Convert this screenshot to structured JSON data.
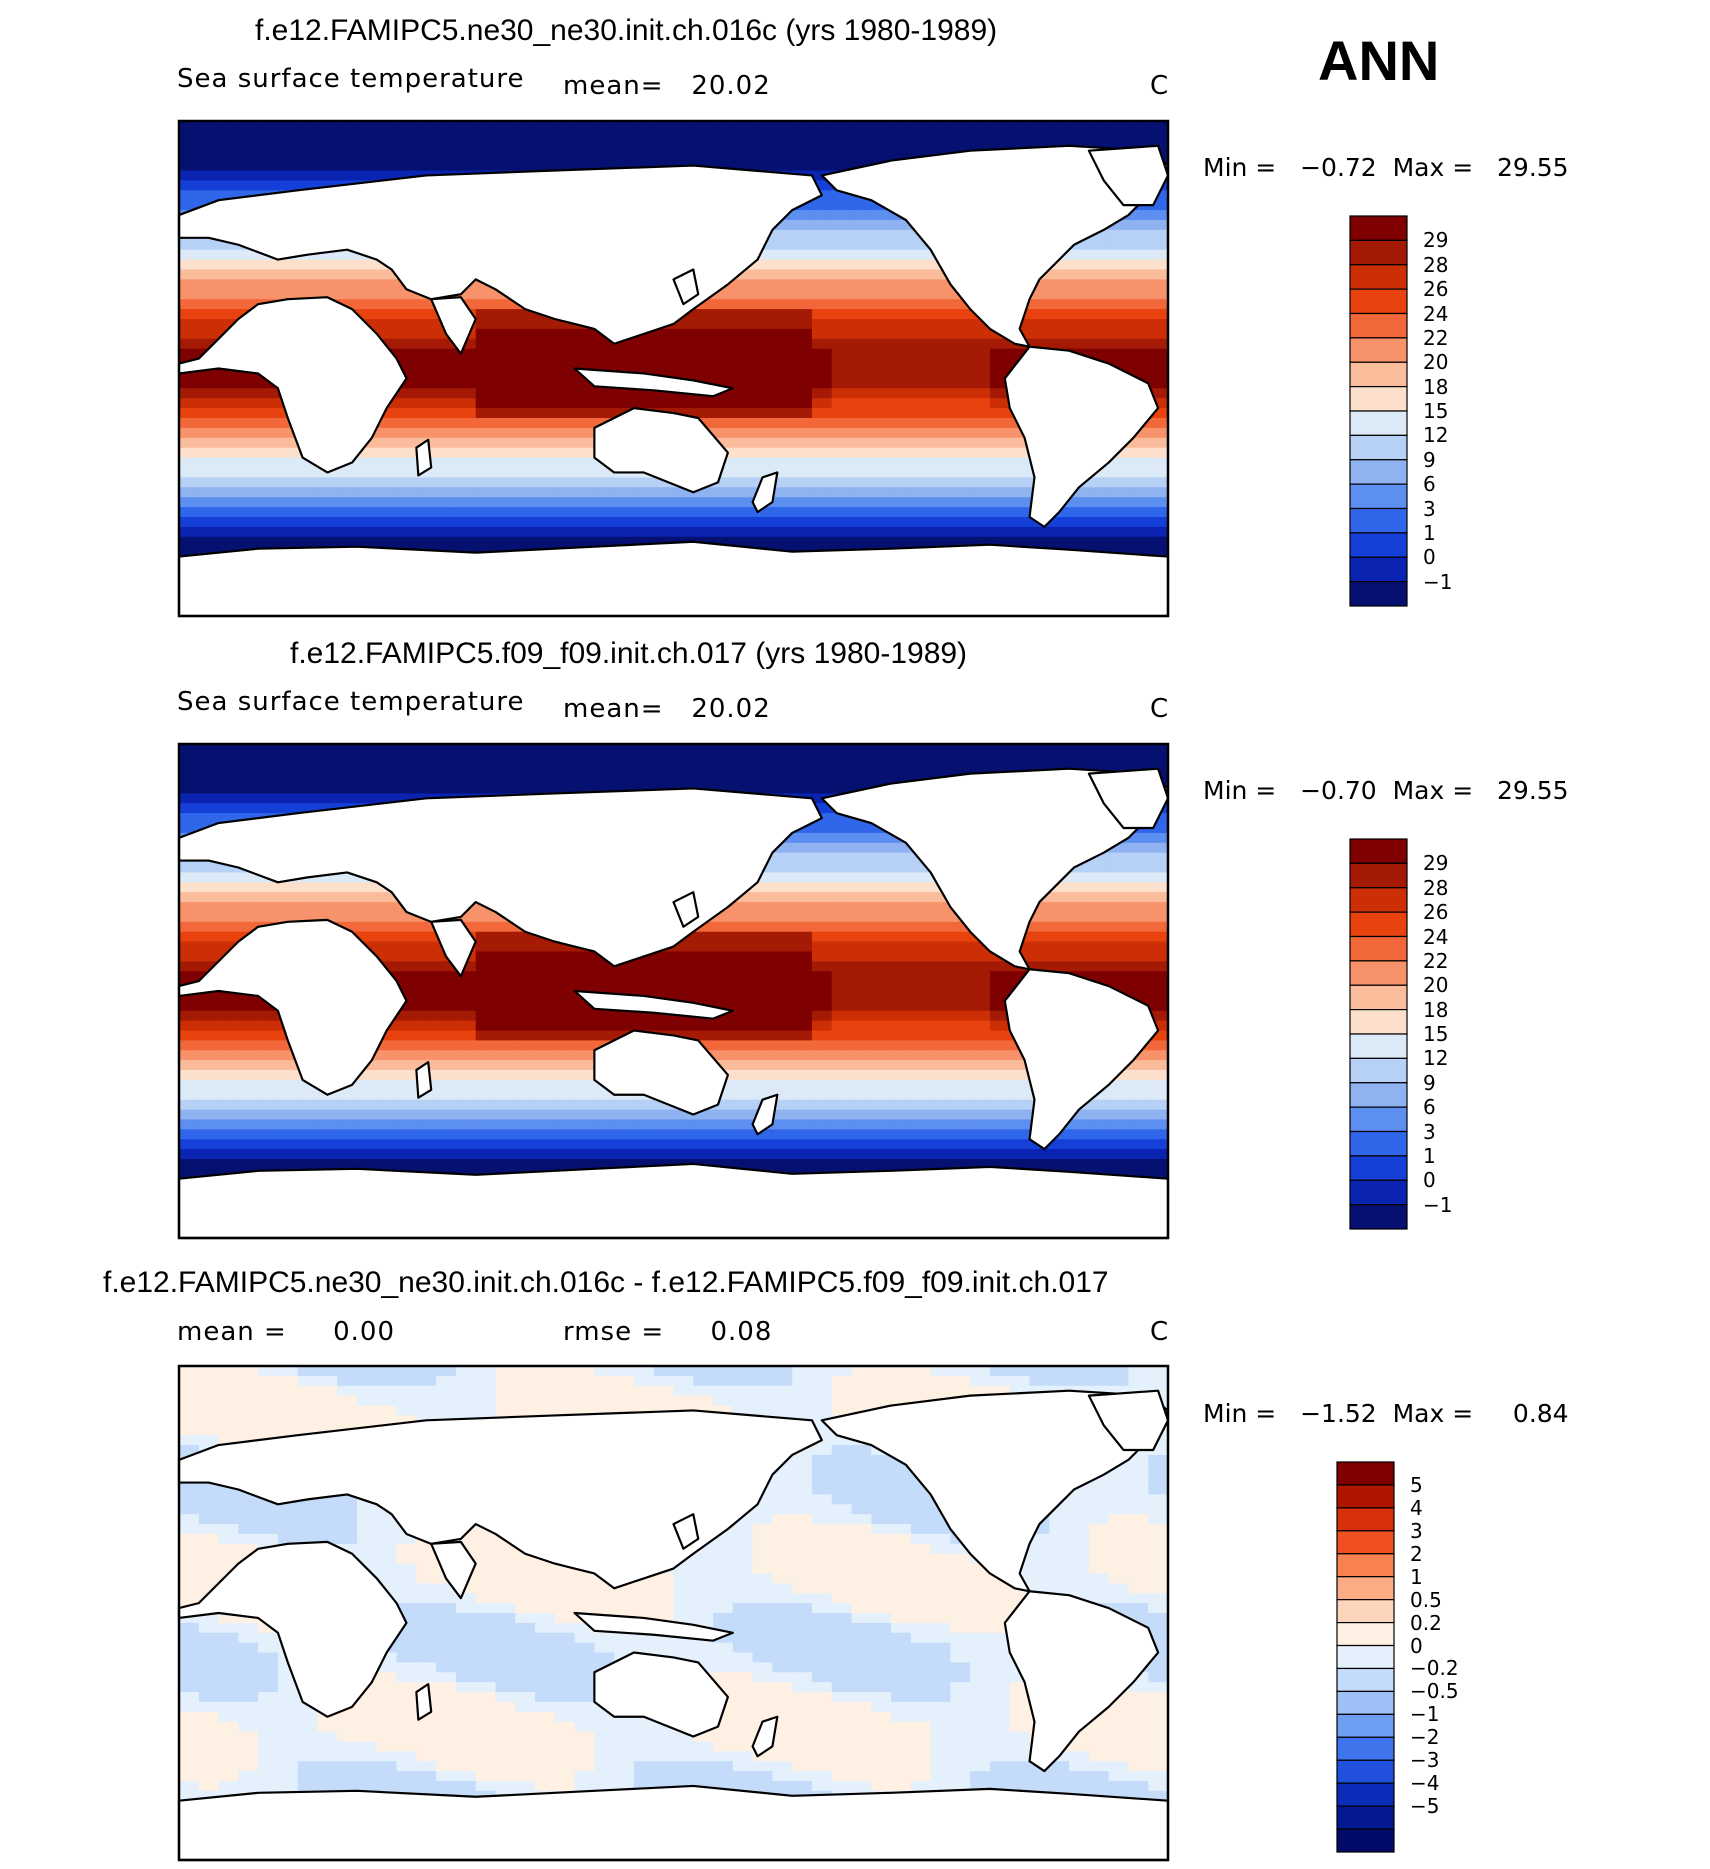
{
  "season": "ANN",
  "panels": [
    {
      "title": "f.e12.FAMIPC5.ne30_ne30.init.ch.016c (yrs 1980-1989)",
      "left_label": "Sea surface temperature",
      "mean_text": "mean=   20.02",
      "units": "C",
      "minmax": "Min =   −0.72  Max =   29.55",
      "colorbar_labels": [
        "29",
        "28",
        "26",
        "24",
        "22",
        "20",
        "18",
        "15",
        "12",
        "9",
        "6",
        "3",
        "1",
        "0",
        "−1"
      ]
    },
    {
      "title": "f.e12.FAMIPC5.f09_f09.init.ch.017 (yrs 1980-1989)",
      "left_label": "Sea surface temperature",
      "mean_text": "mean=   20.02",
      "units": "C",
      "minmax": "Min =   −0.70  Max =   29.55",
      "colorbar_labels": [
        "29",
        "28",
        "26",
        "24",
        "22",
        "20",
        "18",
        "15",
        "12",
        "9",
        "6",
        "3",
        "1",
        "0",
        "−1"
      ]
    },
    {
      "title": "f.e12.FAMIPC5.ne30_ne30.init.ch.016c - f.e12.FAMIPC5.f09_f09.init.ch.017",
      "left_label": "mean =     0.00",
      "mean_text": "rmse =     0.08",
      "units": "C",
      "minmax": "Min =   −1.52  Max =     0.84",
      "colorbar_labels": [
        "5",
        "4",
        "3",
        "2",
        "1",
        "0.5",
        "0.2",
        "0",
        "−0.2",
        "−0.5",
        "−1",
        "−2",
        "−3",
        "−4",
        "−5"
      ]
    }
  ],
  "colors": {
    "sst_scale": [
      "#7f0000",
      "#a51a05",
      "#cc2e06",
      "#e8430f",
      "#f2683a",
      "#f7926a",
      "#fbbc9c",
      "#fde0cc",
      "#dceaf8",
      "#b6d1f5",
      "#8fb2f1",
      "#5d8ff0",
      "#2f66ea",
      "#1540d8",
      "#0a23b0",
      "#051070"
    ],
    "diff_scale": [
      "#800000",
      "#b01500",
      "#d8300a",
      "#f04f22",
      "#f7814f",
      "#fbac85",
      "#fdd5bd",
      "#fff0e4",
      "#e4f0fc",
      "#c4dcfa",
      "#9fc0f6",
      "#6e9ef2",
      "#3f75ec",
      "#2050dc",
      "#0b2cb8",
      "#041890",
      "#020a6a"
    ],
    "land": "#ffffff",
    "coast": "#000000"
  }
}
